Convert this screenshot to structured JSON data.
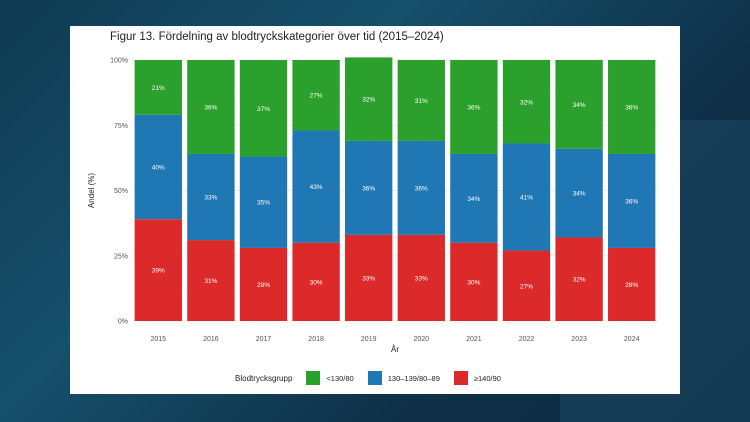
{
  "chart_data": {
    "type": "bar",
    "stacked": true,
    "title": "Figur 13. Fördelning av blodtryckskategorier över tid (2015–2024)",
    "xlabel": "År",
    "ylabel": "Andel (%)",
    "ylim": [
      0,
      100
    ],
    "y_ticks": [
      "0%",
      "25%",
      "50%",
      "75%",
      "100%"
    ],
    "grid": true,
    "legend_position": "bottom",
    "legend_title": "Blodtrycksgrupp",
    "categories": [
      "2015",
      "2016",
      "2017",
      "2018",
      "2019",
      "2020",
      "2021",
      "2022",
      "2023",
      "2024"
    ],
    "series": [
      {
        "name": "≥140/90",
        "color": "#dc2a2a",
        "values": [
          39,
          31,
          28,
          30,
          33,
          33,
          30,
          27,
          32,
          28
        ]
      },
      {
        "name": "130–139/80–89",
        "color": "#1f77b4",
        "values": [
          40,
          33,
          35,
          43,
          36,
          36,
          34,
          41,
          34,
          36
        ]
      },
      {
        "name": "<130/80",
        "color": "#2ca02c",
        "values": [
          21,
          36,
          37,
          27,
          32,
          31,
          36,
          32,
          34,
          36
        ]
      }
    ],
    "legend_order": [
      "<130/80",
      "130–139/80–89",
      "≥140/90"
    ]
  }
}
